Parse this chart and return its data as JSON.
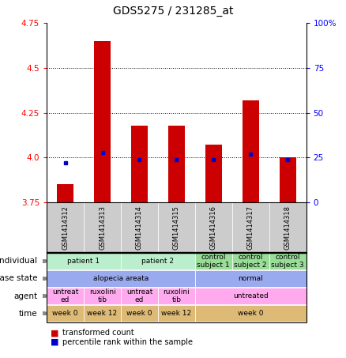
{
  "title": "GDS5275 / 231285_at",
  "samples": [
    "GSM1414312",
    "GSM1414313",
    "GSM1414314",
    "GSM1414315",
    "GSM1414316",
    "GSM1414317",
    "GSM1414318"
  ],
  "bar_values": [
    3.85,
    4.65,
    4.18,
    4.18,
    4.07,
    4.32,
    4.0
  ],
  "percentile_values": [
    22,
    28,
    24,
    24,
    24,
    27,
    24
  ],
  "ylim_left": [
    3.75,
    4.75
  ],
  "ylim_right": [
    0,
    100
  ],
  "yticks_left": [
    3.75,
    4.0,
    4.25,
    4.5,
    4.75
  ],
  "yticks_right": [
    0,
    25,
    50,
    75,
    100
  ],
  "ytick_labels_right": [
    "0",
    "25",
    "50",
    "75",
    "100%"
  ],
  "bar_color": "#cc0000",
  "dot_color": "#0000cc",
  "bar_bottom": 3.75,
  "grid_lines": [
    4.0,
    4.25,
    4.5
  ],
  "individual_cells": [
    {
      "text": "patient 1",
      "span": [
        0,
        2
      ],
      "color": "#bbeecc"
    },
    {
      "text": "patient 2",
      "span": [
        2,
        4
      ],
      "color": "#bbeecc"
    },
    {
      "text": "control\nsubject 1",
      "span": [
        4,
        5
      ],
      "color": "#99dd99"
    },
    {
      "text": "control\nsubject 2",
      "span": [
        5,
        6
      ],
      "color": "#99dd99"
    },
    {
      "text": "control\nsubject 3",
      "span": [
        6,
        7
      ],
      "color": "#99dd99"
    }
  ],
  "disease_cells": [
    {
      "text": "alopecia areata",
      "span": [
        0,
        4
      ],
      "color": "#99aaee"
    },
    {
      "text": "normal",
      "span": [
        4,
        7
      ],
      "color": "#99aaee"
    }
  ],
  "agent_cells": [
    {
      "text": "untreat\ned",
      "span": [
        0,
        1
      ],
      "color": "#ffaaee"
    },
    {
      "text": "ruxolini\ntib",
      "span": [
        1,
        2
      ],
      "color": "#ffaaee"
    },
    {
      "text": "untreat\ned",
      "span": [
        2,
        3
      ],
      "color": "#ffaaee"
    },
    {
      "text": "ruxolini\ntib",
      "span": [
        3,
        4
      ],
      "color": "#ffaaee"
    },
    {
      "text": "untreated",
      "span": [
        4,
        7
      ],
      "color": "#ffaaee"
    }
  ],
  "time_cells": [
    {
      "text": "week 0",
      "span": [
        0,
        1
      ],
      "color": "#ddbb77"
    },
    {
      "text": "week 12",
      "span": [
        1,
        2
      ],
      "color": "#ddbb77"
    },
    {
      "text": "week 0",
      "span": [
        2,
        3
      ],
      "color": "#ddbb77"
    },
    {
      "text": "week 12",
      "span": [
        3,
        4
      ],
      "color": "#ddbb77"
    },
    {
      "text": "week 0",
      "span": [
        4,
        7
      ],
      "color": "#ddbb77"
    }
  ],
  "row_labels": [
    "individual",
    "disease state",
    "agent",
    "time"
  ],
  "sample_bg_color": "#cccccc"
}
